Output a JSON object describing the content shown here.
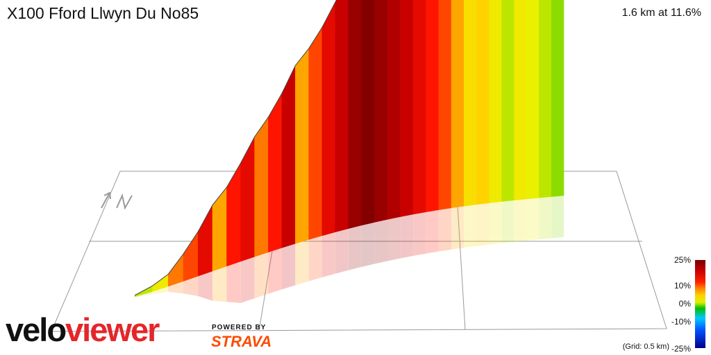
{
  "header": {
    "title": "X100 Fford Llwyn Du No85",
    "stats": "1.6 km at 11.6%"
  },
  "chart_data": {
    "type": "area",
    "title": "X100 Fford Llwyn Du No85",
    "distance_km": 1.6,
    "avg_gradient_pct": 11.6,
    "gradient_segments_pct": [
      4,
      6,
      14,
      16,
      20,
      12,
      18,
      20,
      14,
      18,
      22,
      12,
      16,
      20,
      22,
      24,
      25,
      24,
      23,
      22,
      20,
      18,
      16,
      12,
      8,
      10,
      6,
      4,
      6,
      5,
      4,
      3
    ],
    "colorbar": {
      "ticks": [
        "25%",
        "10%",
        "0%",
        "-10%",
        "-25%"
      ],
      "colors": [
        "#7a0000",
        "#c80000",
        "#ff0000",
        "#ff8000",
        "#ffd000",
        "#ffff00",
        "#00c000",
        "#00c8ff",
        "#0050ff",
        "#00008a"
      ]
    },
    "grid_note": "(Grid: 0.5 km)"
  },
  "branding": {
    "logo_part1": "velo",
    "logo_part2": "viewer",
    "powered_by": "POWERED BY",
    "strava": "STRAVA"
  },
  "icons": {
    "north": "north-arrow-icon"
  }
}
